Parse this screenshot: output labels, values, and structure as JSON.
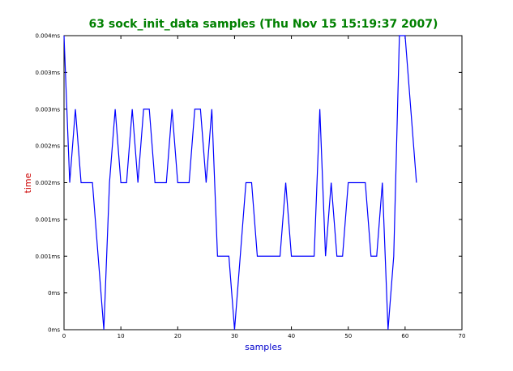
{
  "chart_data": {
    "type": "line",
    "title": "63 sock_init_data samples (Thu Nov 15 15:19:37 2007)",
    "xlabel": "samples",
    "ylabel": "time",
    "xlim": [
      0,
      70
    ],
    "ylim": [
      0,
      4
    ],
    "x_ticks": [
      0,
      10,
      20,
      30,
      40,
      50,
      60,
      70
    ],
    "x_tick_labels": [
      "0",
      "10",
      "20",
      "30",
      "40",
      "50",
      "60",
      "70"
    ],
    "y_ticks": [
      0,
      0.5,
      1,
      1.5,
      2,
      2.5,
      3,
      3.5,
      4
    ],
    "y_tick_labels": [
      "0ms",
      "0ms",
      "0.001ms",
      "0.001ms",
      "0.002ms",
      "0.002ms",
      "0.003ms",
      "0.003ms",
      "0.004ms"
    ],
    "grid": false,
    "colors": {
      "title": "#008000",
      "xlabel": "#0000cc",
      "ylabel": "#cc0000",
      "line": "#0000ff",
      "axes": "#000000"
    },
    "series": [
      {
        "x": [
          0,
          1,
          2,
          3,
          4,
          5,
          6,
          7,
          8,
          9,
          10,
          11,
          12,
          13,
          14,
          15,
          16,
          17,
          18,
          19,
          20,
          21,
          22,
          23,
          24,
          25,
          26,
          27,
          28,
          29,
          30,
          31,
          32,
          33,
          34,
          35,
          36,
          37,
          38,
          39,
          40,
          41,
          42,
          43,
          44,
          45,
          46,
          47,
          48,
          49,
          50,
          51,
          52,
          53,
          54,
          55,
          56,
          57,
          58,
          59,
          60,
          61,
          62
        ],
        "values": [
          4.0,
          2.0,
          3.0,
          2.0,
          2.0,
          2.0,
          1.0,
          0.0,
          2.0,
          3.0,
          2.0,
          2.0,
          3.0,
          2.0,
          3.0,
          3.0,
          2.0,
          2.0,
          2.0,
          3.0,
          2.0,
          2.0,
          2.0,
          3.0,
          3.0,
          2.0,
          3.0,
          1.0,
          1.0,
          1.0,
          0.0,
          1.0,
          2.0,
          2.0,
          1.0,
          1.0,
          1.0,
          1.0,
          1.0,
          2.0,
          1.0,
          1.0,
          1.0,
          1.0,
          1.0,
          3.0,
          1.0,
          2.0,
          1.0,
          1.0,
          2.0,
          2.0,
          2.0,
          2.0,
          1.0,
          1.0,
          2.0,
          0.0,
          1.0,
          4.0,
          4.0,
          3.0,
          2.0
        ]
      }
    ]
  }
}
